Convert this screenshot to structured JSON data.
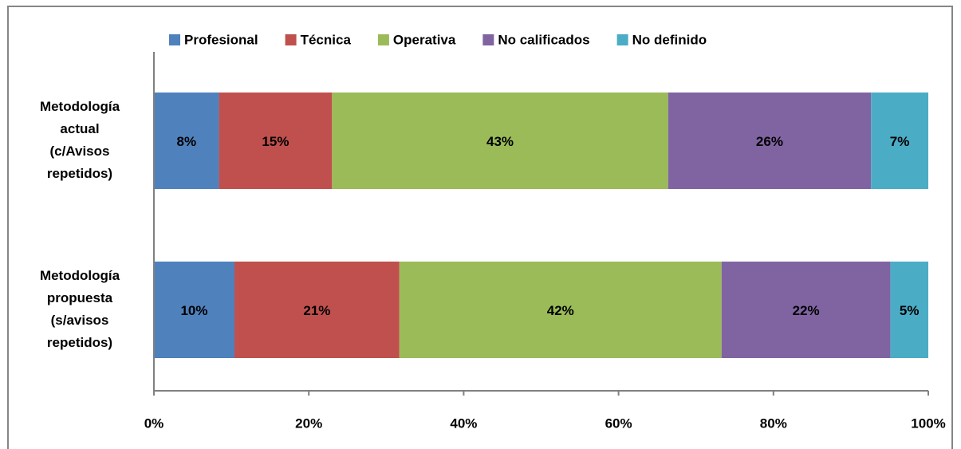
{
  "chart_data": {
    "type": "bar",
    "orientation": "horizontal",
    "stacked": true,
    "categories": [
      [
        "Metodología",
        "actual",
        "(c/Avisos",
        "repetidos)"
      ],
      [
        "Metodología",
        "propuesta",
        "(s/avisos",
        "repetidos)"
      ]
    ],
    "series": [
      {
        "name": "Profesional",
        "color": "#4f81bd",
        "values": [
          8.4,
          10.4
        ],
        "value_labels": [
          "8%",
          "10%"
        ]
      },
      {
        "name": "Técnica",
        "color": "#c0504d",
        "values": [
          14.6,
          21.3
        ],
        "value_labels": [
          "15%",
          "21%"
        ]
      },
      {
        "name": "Operativa",
        "color": "#9bbb59",
        "values": [
          43.4,
          41.6
        ],
        "value_labels": [
          "43%",
          "42%"
        ]
      },
      {
        "name": "No calificados",
        "color": "#8064a2",
        "values": [
          26.2,
          21.8
        ],
        "value_labels": [
          "26%",
          "22%"
        ]
      },
      {
        "name": "No definido",
        "color": "#4bacc6",
        "values": [
          7.4,
          4.9
        ],
        "value_labels": [
          "7%",
          "5%"
        ]
      }
    ],
    "xlim": [
      0,
      100
    ],
    "xticks": [
      {
        "value": 0,
        "label": "0%"
      },
      {
        "value": 20,
        "label": "20%"
      },
      {
        "value": 40,
        "label": "40%"
      },
      {
        "value": 60,
        "label": "60%"
      },
      {
        "value": 80,
        "label": "80%"
      },
      {
        "value": 100,
        "label": "100%"
      }
    ],
    "legend": "top"
  }
}
